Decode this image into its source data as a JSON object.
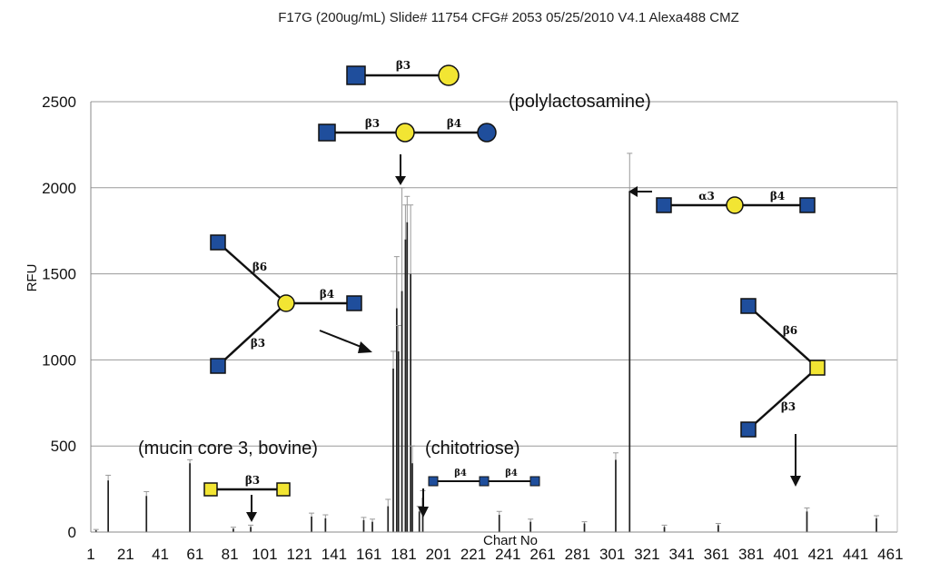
{
  "chart_data": {
    "type": "bar",
    "title": "F17G (200ug/mL) Slide# 11754 CFG# 2053 05/25/2010 V4.1 Alexa488 CMZ",
    "xlabel": "Chart No",
    "ylabel": "RFU",
    "xlim": [
      1,
      465
    ],
    "ylim": [
      0,
      2500
    ],
    "grid": true,
    "y_ticks": [
      "0",
      "500",
      "1000",
      "1500",
      "2000",
      "2500"
    ],
    "x_ticks": [
      "1",
      "21",
      "41",
      "61",
      "81",
      "101",
      "121",
      "141",
      "161",
      "181",
      "201",
      "221",
      "241",
      "261",
      "281",
      "301",
      "321",
      "341",
      "361",
      "381",
      "401",
      "421",
      "441",
      "461"
    ],
    "x": [
      4,
      11,
      33,
      58,
      83,
      93,
      128,
      136,
      158,
      163,
      172,
      175,
      177,
      178,
      180,
      182,
      183,
      185,
      186,
      190,
      192,
      236,
      254,
      285,
      303,
      311,
      331,
      362,
      413,
      453
    ],
    "values": [
      10,
      300,
      210,
      400,
      20,
      30,
      90,
      80,
      70,
      60,
      150,
      950,
      1300,
      1050,
      1400,
      1700,
      1800,
      1500,
      400,
      120,
      200,
      100,
      60,
      50,
      420,
      1980,
      30,
      40,
      120,
      80
    ],
    "errors": [
      5,
      30,
      25,
      20,
      8,
      10,
      20,
      20,
      15,
      15,
      40,
      100,
      300,
      150,
      600,
      200,
      150,
      400,
      100,
      30,
      40,
      20,
      15,
      10,
      40,
      220,
      10,
      10,
      20,
      15
    ]
  },
  "annotations": {
    "polylactosamine": "(polylactosamine)",
    "mucin_core3": "(mucin core 3, bovine)",
    "chitotriose": "(chitotriose)"
  },
  "bond_labels": {
    "top1": "β3",
    "top2a": "β3",
    "top2b": "β4",
    "left_b6": "β6",
    "left_b3": "β3",
    "left_b4": "β4",
    "right_a3": "α3",
    "right_b4": "β4",
    "right_b6": "β6",
    "right_b3": "β3",
    "mucin_b3": "β3",
    "chito_b4a": "β4",
    "chito_b4b": "β4"
  },
  "colors": {
    "glcnac_square": "#1f4e9c",
    "gal_circle": "#f2e533",
    "galnac_square": "#f2e533",
    "glc_circle": "#1f4e9c"
  }
}
